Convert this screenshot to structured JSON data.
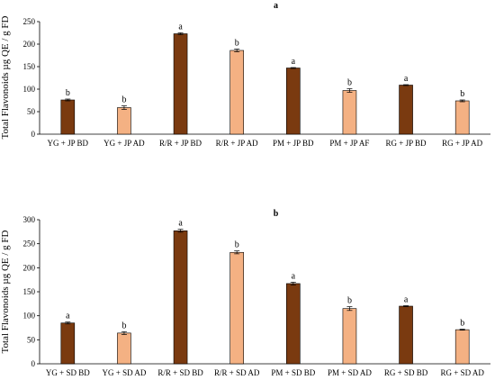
{
  "chart_data": [
    {
      "type": "bar",
      "title": "a",
      "ylabel": "Total Flavonoids µg QE / g FD",
      "xlabel": "",
      "ylim": [
        0,
        250
      ],
      "yticks": [
        0,
        50,
        100,
        150,
        200,
        250
      ],
      "grid": false,
      "categories": [
        "YG + JP BD",
        "YG + JP AD",
        "R/R + JP BD",
        "R/R + JP AD",
        "PM + JP BD",
        "PM + JP AF",
        "RG + JP BD",
        "RG + JP AD"
      ],
      "values": [
        76,
        59,
        223,
        186,
        147,
        97,
        109,
        74
      ],
      "errors": [
        2,
        4,
        2,
        3,
        1,
        4,
        1,
        2
      ],
      "letters": [
        "b",
        "b",
        "a",
        "b",
        "a",
        "b",
        "a",
        "b"
      ],
      "colors": [
        "#7a3a10",
        "#f4b183",
        "#7a3a10",
        "#f4b183",
        "#7a3a10",
        "#f4b183",
        "#7a3a10",
        "#f4b183"
      ]
    },
    {
      "type": "bar",
      "title": "b",
      "ylabel": "Total Flavonoids µg QE / g FD",
      "xlabel": "",
      "ylim": [
        0,
        300
      ],
      "yticks": [
        0,
        50,
        100,
        150,
        200,
        250,
        300
      ],
      "grid": false,
      "categories": [
        "YG + SD BD",
        "YG + SD AD",
        "R/R + SD BD",
        "R/R + SD AD",
        "PM + SD BD",
        "PM + SD AD",
        "RG + SD BD",
        "RG + SD AD"
      ],
      "values": [
        85,
        64,
        277,
        232,
        167,
        115,
        120,
        71
      ],
      "errors": [
        2,
        3,
        3,
        3,
        3,
        4,
        1,
        1
      ],
      "letters": [
        "a",
        "b",
        "a",
        "b",
        "a",
        "b",
        "a",
        "b"
      ],
      "colors": [
        "#7a3a10",
        "#f4b183",
        "#7a3a10",
        "#f4b183",
        "#7a3a10",
        "#f4b183",
        "#7a3a10",
        "#f4b183"
      ]
    }
  ]
}
